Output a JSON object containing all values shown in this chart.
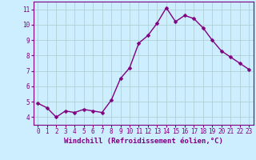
{
  "x": [
    0,
    1,
    2,
    3,
    4,
    5,
    6,
    7,
    8,
    9,
    10,
    11,
    12,
    13,
    14,
    15,
    16,
    17,
    18,
    19,
    20,
    21,
    22,
    23
  ],
  "y": [
    4.9,
    4.6,
    4.0,
    4.4,
    4.3,
    4.5,
    4.4,
    4.3,
    5.1,
    6.5,
    7.2,
    8.8,
    9.3,
    10.1,
    11.1,
    10.2,
    10.6,
    10.4,
    9.8,
    9.0,
    8.3,
    7.9,
    7.5,
    7.1
  ],
  "line_color": "#800080",
  "marker_color": "#800080",
  "bg_color": "#cceeff",
  "grid_color": "#aacccc",
  "xlabel": "Windchill (Refroidissement éolien,°C)",
  "xlim": [
    -0.5,
    23.5
  ],
  "ylim": [
    3.5,
    11.5
  ],
  "yticks": [
    4,
    5,
    6,
    7,
    8,
    9,
    10,
    11
  ],
  "xticks": [
    0,
    1,
    2,
    3,
    4,
    5,
    6,
    7,
    8,
    9,
    10,
    11,
    12,
    13,
    14,
    15,
    16,
    17,
    18,
    19,
    20,
    21,
    22,
    23
  ],
  "tick_fontsize": 5.5,
  "xlabel_fontsize": 6.5,
  "line_width": 1.0,
  "marker_size": 2.5
}
